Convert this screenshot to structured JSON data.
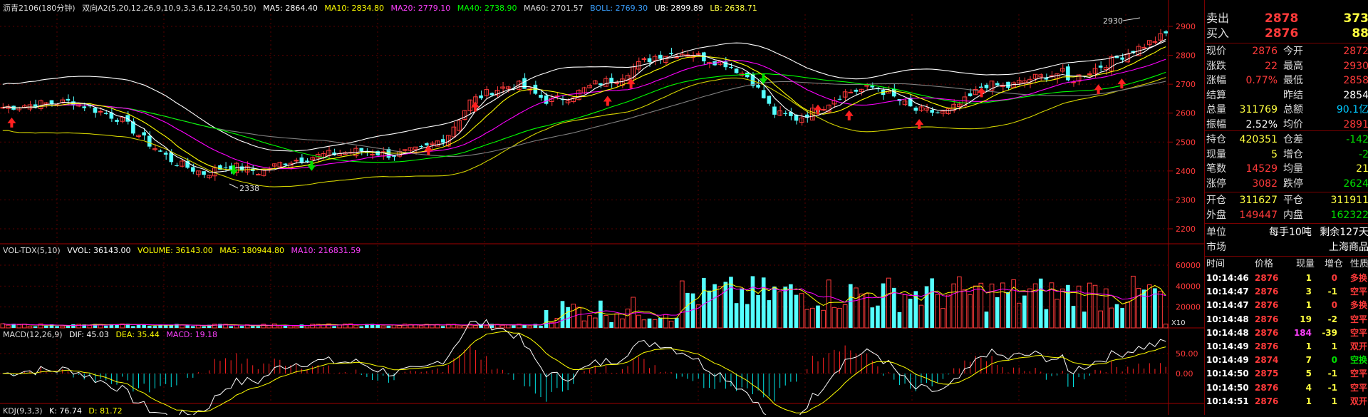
{
  "price_header": {
    "title": "沥青2106(180分钟)",
    "indicator": "双向A2(5,20,12,26,9,10,9,3,3,6,12,24,50,50)",
    "ma5": "MA5: 2864.40",
    "ma10": "MA10: 2834.80",
    "ma20": "MA20: 2779.10",
    "ma40": "MA40: 2738.90",
    "ma60": "MA60: 2701.57",
    "boll": "BOLL: 2769.30",
    "ub": "UB: 2899.89",
    "lb": "LB: 2638.71"
  },
  "vol_header": {
    "name": "VOL-TDX(5,10)",
    "vvol": "VVOL: 36143.00",
    "volume": "VOLUME: 36143.00",
    "ma5": "MA5: 180944.80",
    "ma10": "MA10: 216831.59"
  },
  "macd_header": {
    "name": "MACD(12,26,9)",
    "dif": "DIF: 45.03",
    "dea": "DEA: 35.44",
    "macd": "MACD: 19.18"
  },
  "kdj_header": {
    "name": "KDJ(9,3,3)",
    "k": "K: 76.74",
    "d": "D: 81.72"
  },
  "price_axis": [
    "2900",
    "2800",
    "2700",
    "2600",
    "2500",
    "2400",
    "2300",
    "2200"
  ],
  "vol_axis": [
    "60000",
    "40000",
    "20000"
  ],
  "vol_unit": "X10",
  "macd_axis": [
    "50.00",
    "0.00"
  ],
  "annotations": {
    "high": "2930",
    "low": "2338"
  },
  "colors": {
    "up": "#ff3a3a",
    "down": "#54ffff",
    "ma5": "#ffffff",
    "ma10": "#ffff00",
    "ma20": "#ff00ff",
    "ma40": "#00ff00",
    "ma60": "#808080",
    "ub": "#ffffff",
    "lb": "#d4d400"
  },
  "quote": {
    "sell_label": "卖出",
    "sell_price": "2878",
    "sell_vol": "373",
    "buy_label": "买入",
    "buy_price": "2876",
    "buy_vol": "88",
    "rows": [
      {
        "l1": "现价",
        "v1": "2876",
        "c1": "red",
        "l2": "今开",
        "v2": "2872",
        "c2": "red"
      },
      {
        "l1": "涨跌",
        "v1": "22",
        "c1": "red",
        "l2": "最高",
        "v2": "2930",
        "c2": "red"
      },
      {
        "l1": "涨幅",
        "v1": "0.77%",
        "c1": "red",
        "l2": "最低",
        "v2": "2858",
        "c2": "red"
      },
      {
        "l1": "结算",
        "v1": "",
        "c1": "wht",
        "l2": "昨结",
        "v2": "2854",
        "c2": "wht"
      },
      {
        "l1": "总量",
        "v1": "311769",
        "c1": "yel",
        "l2": "总额",
        "v2": "90.1亿",
        "c2": "cyn"
      },
      {
        "l1": "振幅",
        "v1": "2.52%",
        "c1": "wht",
        "l2": "均价",
        "v2": "2891",
        "c2": "red"
      }
    ],
    "rows2": [
      {
        "l1": "持仓",
        "v1": "420351",
        "c1": "yel",
        "l2": "仓差",
        "v2": "-142",
        "c2": "grn"
      },
      {
        "l1": "现量",
        "v1": "5",
        "c1": "yel",
        "l2": "增仓",
        "v2": "-2",
        "c2": "grn"
      },
      {
        "l1": "笔数",
        "v1": "14529",
        "c1": "red",
        "l2": "均量",
        "v2": "21",
        "c2": "yel"
      },
      {
        "l1": "涨停",
        "v1": "3082",
        "c1": "red",
        "l2": "跌停",
        "v2": "2624",
        "c2": "grn"
      }
    ],
    "rows3": [
      {
        "l1": "开仓",
        "v1": "311627",
        "c1": "yel",
        "l2": "平仓",
        "v2": "311911",
        "c2": "yel"
      },
      {
        "l1": "外盘",
        "v1": "149447",
        "c1": "red",
        "l2": "内盘",
        "v2": "162322",
        "c2": "grn"
      }
    ],
    "unit_label": "单位",
    "unit_value": "每手10吨",
    "remain": "剩余127天",
    "market_label": "市场",
    "market_value": "上海商品",
    "trade_headers": {
      "time": "时间",
      "price": "价格",
      "vol": "现量",
      "inc": "增仓",
      "nature": "性质"
    },
    "trades": [
      {
        "time": "10:14:46",
        "price": "2876",
        "vol": "1",
        "inc": "0",
        "nature": "多换",
        "pc": "red",
        "ic": "red",
        "nc": "red"
      },
      {
        "time": "10:14:47",
        "price": "2876",
        "vol": "3",
        "inc": "-1",
        "nature": "空平",
        "pc": "red",
        "ic": "yel",
        "nc": "red"
      },
      {
        "time": "10:14:47",
        "price": "2876",
        "vol": "1",
        "inc": "0",
        "nature": "多换",
        "pc": "red",
        "ic": "red",
        "nc": "red"
      },
      {
        "time": "10:14:48",
        "price": "2876",
        "vol": "19",
        "inc": "-2",
        "nature": "空平",
        "pc": "red",
        "ic": "yel",
        "nc": "red"
      },
      {
        "time": "10:14:48",
        "price": "2876",
        "vol": "184",
        "inc": "-39",
        "nature": "空平",
        "pc": "red",
        "ic": "yel",
        "nc": "red",
        "vc": "mag"
      },
      {
        "time": "10:14:49",
        "price": "2876",
        "vol": "1",
        "inc": "1",
        "nature": "双开",
        "pc": "red",
        "ic": "yel",
        "nc": "red"
      },
      {
        "time": "10:14:49",
        "price": "2874",
        "vol": "7",
        "inc": "0",
        "nature": "空换",
        "pc": "red",
        "ic": "grn",
        "nc": "grn"
      },
      {
        "time": "10:14:50",
        "price": "2875",
        "vol": "5",
        "inc": "-1",
        "nature": "空平",
        "pc": "red",
        "ic": "yel",
        "nc": "red"
      },
      {
        "time": "10:14:50",
        "price": "2876",
        "vol": "4",
        "inc": "-1",
        "nature": "空平",
        "pc": "red",
        "ic": "yel",
        "nc": "red"
      },
      {
        "time": "10:14:51",
        "price": "2876",
        "vol": "1",
        "inc": "1",
        "nature": "双开",
        "pc": "red",
        "ic": "yel",
        "nc": "red"
      }
    ]
  }
}
